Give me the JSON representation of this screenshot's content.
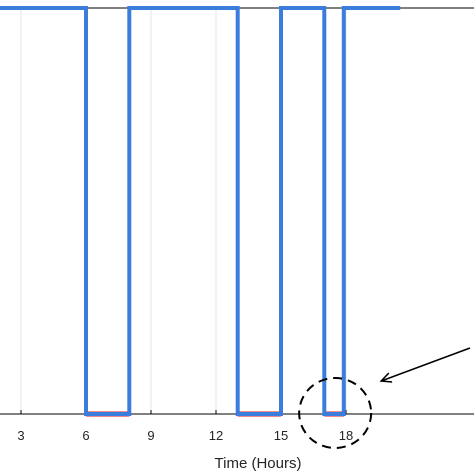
{
  "chart_data": {
    "type": "line",
    "xlabel": "Time (Hours)",
    "ylabel": "",
    "xlim": [
      0.8,
      20.5
    ],
    "ylim": [
      0,
      1
    ],
    "x_ticks": [
      3,
      6,
      9,
      12,
      15,
      18
    ],
    "x_tick_labels": [
      "3",
      "6",
      "9",
      "12",
      "15",
      "18"
    ],
    "grid": true,
    "series": [
      {
        "color": "#3b7ddd",
        "x": [
          0.8,
          6,
          6,
          8,
          8,
          13,
          13,
          15,
          15,
          17,
          17,
          17.9,
          17.9,
          20.5
        ],
        "y": [
          1,
          1,
          0,
          0,
          1,
          1,
          0,
          0,
          1,
          1,
          0,
          0,
          1,
          1
        ]
      }
    ],
    "highlighted_intervals": {
      "color": "#e31a1c",
      "intervals": [
        [
          6,
          8
        ],
        [
          13,
          15
        ],
        [
          17,
          17.9
        ]
      ]
    },
    "annotations": [
      {
        "type": "dashed-circle",
        "center_x": 17.5,
        "target": "interval 17–17.9"
      },
      {
        "type": "arrow",
        "points_to": "dashed-circle"
      }
    ]
  }
}
